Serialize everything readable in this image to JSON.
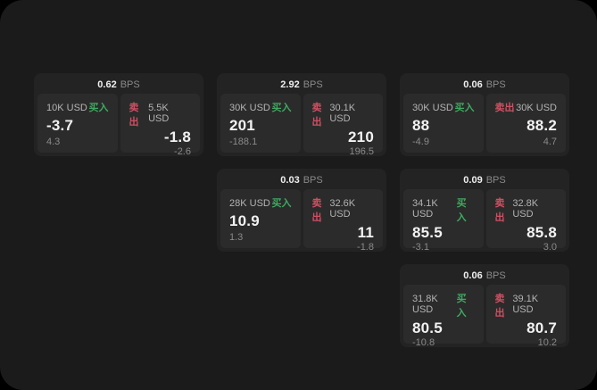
{
  "colors": {
    "page_bg": "#000000",
    "panel_bg": "#1b1b1b",
    "card_bg": "#232323",
    "tile_bg": "#2b2b2b",
    "text_primary": "#f2f2f2",
    "text_secondary": "#b3b3b3",
    "text_muted": "#8a8a8a",
    "buy_green": "#3fa860",
    "sell_red": "#ce5063"
  },
  "labels": {
    "bps_unit": "BPS",
    "buy": "买入",
    "sell": "卖出"
  },
  "cards": [
    {
      "bps": "0.62",
      "buy": {
        "size": "10K USD",
        "price": "-3.7",
        "delta": "4.3"
      },
      "sell": {
        "size": "5.5K USD",
        "price": "-1.8",
        "delta": "-2.6"
      }
    },
    {
      "bps": "2.92",
      "buy": {
        "size": "30K USD",
        "price": "201",
        "delta": "-188.1"
      },
      "sell": {
        "size": "30.1K USD",
        "price": "210",
        "delta": "196.5"
      }
    },
    {
      "bps": "0.06",
      "buy": {
        "size": "30K USD",
        "price": "88",
        "delta": "-4.9"
      },
      "sell": {
        "size": "30K USD",
        "price": "88.2",
        "delta": "4.7"
      }
    },
    {
      "bps": "0.03",
      "buy": {
        "size": "28K USD",
        "price": "10.9",
        "delta": "1.3"
      },
      "sell": {
        "size": "32.6K USD",
        "price": "11",
        "delta": "-1.8"
      }
    },
    {
      "bps": "0.09",
      "buy": {
        "size": "34.1K USD",
        "price": "85.5",
        "delta": "-3.1"
      },
      "sell": {
        "size": "32.8K USD",
        "price": "85.8",
        "delta": "3.0"
      }
    },
    {
      "bps": "0.06",
      "buy": {
        "size": "31.8K USD",
        "price": "80.5",
        "delta": "-10.8"
      },
      "sell": {
        "size": "39.1K USD",
        "price": "80.7",
        "delta": "10.2"
      }
    }
  ]
}
